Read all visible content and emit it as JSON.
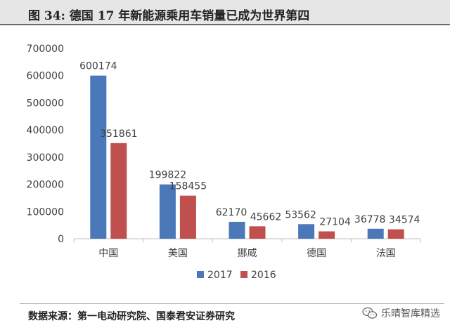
{
  "title": "图  34:  德国 17 年新能源乘用车销量已成为世界第四",
  "source": "数据来源：第一电动研究院、国泰君安证券研究",
  "watermark": "乐晴智库精选",
  "watermark_icon": "wechat-icon",
  "colors": {
    "series_2017": "#4a78b8",
    "series_2016": "#c0504d",
    "axis": "#bfbfbf",
    "text": "#404040"
  },
  "chart_data": {
    "type": "bar",
    "title": "",
    "xlabel": "",
    "ylabel": "",
    "ylim": [
      0,
      700000
    ],
    "yticks": [
      "0",
      "100000",
      "200000",
      "300000",
      "400000",
      "500000",
      "600000",
      "700000"
    ],
    "categories": [
      "中国",
      "美国",
      "挪威",
      "德国",
      "法国"
    ],
    "series": [
      {
        "name": "2017",
        "color": "#4a78b8",
        "values": [
          600174,
          199822,
          62170,
          53562,
          36778
        ]
      },
      {
        "name": "2016",
        "color": "#c0504d",
        "values": [
          351861,
          158455,
          45662,
          27104,
          34574
        ]
      }
    ],
    "grid": false,
    "legend": "bottom"
  }
}
